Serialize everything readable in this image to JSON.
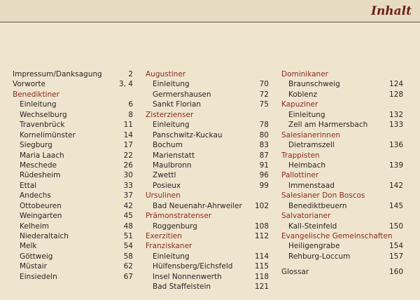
{
  "header": {
    "title": "Inhalt"
  },
  "columns": [
    [
      {
        "type": "top",
        "label": "Impressum/Danksagung",
        "page": "2"
      },
      {
        "type": "top",
        "label": "Vorworte",
        "page": "3, 4"
      },
      {
        "type": "group",
        "label": "Benediktiner",
        "page": ""
      },
      {
        "type": "sub",
        "label": "Einleitung",
        "page": "6"
      },
      {
        "type": "sub",
        "label": "Wechselburg",
        "page": "8"
      },
      {
        "type": "sub",
        "label": "Travenbrück",
        "page": "11"
      },
      {
        "type": "sub",
        "label": "Kornelimünster",
        "page": "14"
      },
      {
        "type": "sub",
        "label": "Siegburg",
        "page": "17"
      },
      {
        "type": "sub",
        "label": "Maria Laach",
        "page": "22"
      },
      {
        "type": "sub",
        "label": "Meschede",
        "page": "26"
      },
      {
        "type": "sub",
        "label": "Rüdesheim",
        "page": "30"
      },
      {
        "type": "sub",
        "label": "Ettal",
        "page": "33"
      },
      {
        "type": "sub",
        "label": "Andechs",
        "page": "37"
      },
      {
        "type": "sub",
        "label": "Ottobeuren",
        "page": "42"
      },
      {
        "type": "sub",
        "label": "Weingarten",
        "page": "45"
      },
      {
        "type": "sub",
        "label": "Kelheim",
        "page": "48"
      },
      {
        "type": "sub",
        "label": "Niederaltaich",
        "page": "51"
      },
      {
        "type": "sub",
        "label": "Melk",
        "page": "54"
      },
      {
        "type": "sub",
        "label": "Göttweig",
        "page": "58"
      },
      {
        "type": "sub",
        "label": "Müstair",
        "page": "62"
      },
      {
        "type": "sub",
        "label": "Einsiedeln",
        "page": "67"
      }
    ],
    [
      {
        "type": "group",
        "label": "Augustiner",
        "page": ""
      },
      {
        "type": "sub",
        "label": "Einleitung",
        "page": "70"
      },
      {
        "type": "sub",
        "label": "Germershausen",
        "page": "72"
      },
      {
        "type": "sub",
        "label": "Sankt Florian",
        "page": "75"
      },
      {
        "type": "group",
        "label": "Zisterzienser",
        "page": ""
      },
      {
        "type": "sub",
        "label": "Einleitung",
        "page": "78"
      },
      {
        "type": "sub",
        "label": "Panschwitz-Kuckau",
        "page": "80"
      },
      {
        "type": "sub",
        "label": "Bochum",
        "page": "83"
      },
      {
        "type": "sub",
        "label": "Marienstatt",
        "page": "87"
      },
      {
        "type": "sub",
        "label": "Maulbronn",
        "page": "91"
      },
      {
        "type": "sub",
        "label": "Zwettl",
        "page": "96"
      },
      {
        "type": "sub",
        "label": "Posieux",
        "page": "99"
      },
      {
        "type": "group",
        "label": "Ursulinen",
        "page": ""
      },
      {
        "type": "sub",
        "label": "Bad Neuenahr-Ahrweiler",
        "page": "102"
      },
      {
        "type": "group",
        "label": "Prämonstratenser",
        "page": ""
      },
      {
        "type": "sub",
        "label": "Roggenburg",
        "page": "108"
      },
      {
        "type": "group",
        "label": "Exerzitien",
        "page": "112"
      },
      {
        "type": "group",
        "label": "Franziskaner",
        "page": ""
      },
      {
        "type": "sub",
        "label": "Einleitung",
        "page": "114"
      },
      {
        "type": "sub",
        "label": "Hülfensberg/Eichsfeld",
        "page": "115"
      },
      {
        "type": "sub",
        "label": "Insel Nonnenwerth",
        "page": "118"
      },
      {
        "type": "sub",
        "label": "Bad Staffelstein",
        "page": "121"
      }
    ],
    [
      {
        "type": "group",
        "label": "Dominikaner",
        "page": ""
      },
      {
        "type": "sub",
        "label": "Braunschweig",
        "page": "124"
      },
      {
        "type": "sub",
        "label": "Koblenz",
        "page": "128"
      },
      {
        "type": "group",
        "label": "Kapuziner",
        "page": ""
      },
      {
        "type": "sub",
        "label": "Einleitung",
        "page": "132"
      },
      {
        "type": "sub",
        "label": "Zell am Harmersbach",
        "page": "133"
      },
      {
        "type": "group",
        "label": "Salesianerinnen",
        "page": ""
      },
      {
        "type": "sub",
        "label": "Dietramszell",
        "page": "136"
      },
      {
        "type": "group",
        "label": "Trappisten",
        "page": ""
      },
      {
        "type": "sub",
        "label": "Heimbach",
        "page": "139"
      },
      {
        "type": "group",
        "label": "Pallottiner",
        "page": ""
      },
      {
        "type": "sub",
        "label": "Immenstaad",
        "page": "142"
      },
      {
        "type": "group",
        "label": "Salesianer Don Boscos",
        "page": ""
      },
      {
        "type": "sub",
        "label": "Benediktbeuern",
        "page": "145"
      },
      {
        "type": "group",
        "label": "Salvatorianer",
        "page": ""
      },
      {
        "type": "sub",
        "label": "Kall-Steinfeld",
        "page": "150"
      },
      {
        "type": "group",
        "label": "Evangelische Gemeinschaften",
        "page": ""
      },
      {
        "type": "sub",
        "label": "Heiligengrabe",
        "page": "154"
      },
      {
        "type": "sub",
        "label": "Rehburg-Loccum",
        "page": "157"
      },
      {
        "type": "blank",
        "label": "",
        "page": ""
      },
      {
        "type": "top",
        "label": "Glossar",
        "page": "160"
      }
    ]
  ],
  "colors": {
    "background": "#efe5cf",
    "group_heading": "#8a2a1f",
    "text": "#2a2220",
    "title": "#6e1f1c"
  }
}
